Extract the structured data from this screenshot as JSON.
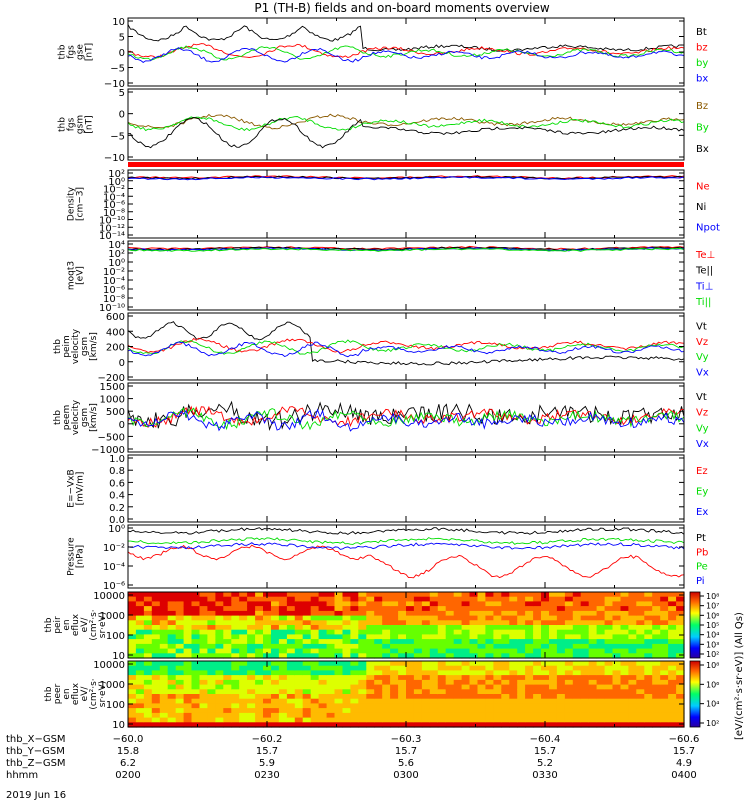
{
  "title": "P1 (TH-B) fields and on-board moments overview",
  "colors": {
    "black": "#000000",
    "red": "#ff0000",
    "green": "#00dd00",
    "blue": "#0000ff",
    "brown": "#8b5a00"
  },
  "chart_data": [
    {
      "type": "line",
      "ylabel": [
        "thb",
        "fgs",
        "gse",
        "[nT]"
      ],
      "yticks": [
        "10",
        "5",
        "0",
        "−5",
        "−10"
      ],
      "ylim": [
        -10,
        10
      ],
      "ylog": false,
      "legend": [
        {
          "name": "Bt",
          "color": "black"
        },
        {
          "name": "bz",
          "color": "red"
        },
        {
          "name": "by",
          "color": "green"
        },
        {
          "name": "bx",
          "color": "blue"
        }
      ]
    },
    {
      "type": "line",
      "ylabel": [
        "thb",
        "fgs",
        "gsm",
        "[nT]"
      ],
      "yticks": [
        "5",
        "0",
        "−5",
        "−10"
      ],
      "ylim": [
        -12,
        8
      ],
      "ylog": false,
      "legend": [
        {
          "name": "Bz",
          "color": "brown"
        },
        {
          "name": "By",
          "color": "green"
        },
        {
          "name": "Bx",
          "color": "black"
        }
      ]
    },
    {
      "type": "line",
      "ylabel": [
        "Density",
        "[cm−3]"
      ],
      "yticks": [
        "10²",
        "10⁰",
        "10⁻²",
        "10⁻⁴",
        "10⁻⁶",
        "10⁻⁸",
        "10⁻¹⁰",
        "10⁻¹²",
        "10⁻¹⁴"
      ],
      "ylim": [
        -14,
        2
      ],
      "ylog": true,
      "legend": [
        {
          "name": "Ne",
          "color": "red"
        },
        {
          "name": "Ni",
          "color": "black"
        },
        {
          "name": "Npot",
          "color": "blue"
        }
      ]
    },
    {
      "type": "line",
      "ylabel": [
        "moqt3",
        "[eV]"
      ],
      "yticks": [
        "10⁴",
        "10²",
        "10⁰",
        "10⁻²",
        "10⁻⁴",
        "10⁻⁶",
        "10⁻⁸",
        "10⁻¹⁰"
      ],
      "ylim": [
        -10,
        4
      ],
      "ylog": true,
      "legend": [
        {
          "name": "Te⊥",
          "color": "red"
        },
        {
          "name": "Te||",
          "color": "black"
        },
        {
          "name": "Ti⊥",
          "color": "blue"
        },
        {
          "name": "Ti||",
          "color": "green"
        }
      ]
    },
    {
      "type": "line",
      "ylabel": [
        "thb",
        "peim",
        "velocity",
        "gsm",
        "[km/s]"
      ],
      "yticks": [
        "600",
        "400",
        "200",
        "0",
        "−200"
      ],
      "ylim": [
        -200,
        600
      ],
      "ylog": false,
      "legend": [
        {
          "name": "Vt",
          "color": "black"
        },
        {
          "name": "Vz",
          "color": "red"
        },
        {
          "name": "Vy",
          "color": "green"
        },
        {
          "name": "Vx",
          "color": "blue"
        }
      ]
    },
    {
      "type": "line",
      "ylabel": [
        "thb",
        "peem",
        "velocity",
        "gsm",
        "[km/s]"
      ],
      "yticks": [
        "1500",
        "1000",
        "500",
        "0",
        "−500",
        "−1000"
      ],
      "ylim": [
        -1000,
        1500
      ],
      "ylog": false,
      "legend": [
        {
          "name": "Vt",
          "color": "black"
        },
        {
          "name": "Vz",
          "color": "red"
        },
        {
          "name": "Vy",
          "color": "green"
        },
        {
          "name": "Vx",
          "color": "blue"
        }
      ]
    },
    {
      "type": "line",
      "ylabel": [
        "E=−VxB",
        "[mV/m]"
      ],
      "yticks": [
        "1.0",
        "0.8",
        "0.6",
        "0.4",
        "0.2",
        "0.0"
      ],
      "ylim": [
        0,
        1
      ],
      "ylog": false,
      "legend": [
        {
          "name": "Ez",
          "color": "red"
        },
        {
          "name": "Ey",
          "color": "green"
        },
        {
          "name": "Ex",
          "color": "blue"
        }
      ]
    },
    {
      "type": "line",
      "ylabel": [
        "Pressure",
        "[nPa]"
      ],
      "yticks": [
        "10⁰",
        "10⁻²",
        "10⁻⁴",
        "10⁻⁶"
      ],
      "ylim": [
        -6,
        0
      ],
      "ylog": true,
      "legend": [
        {
          "name": "Pt",
          "color": "black"
        },
        {
          "name": "Pb",
          "color": "red"
        },
        {
          "name": "Pe",
          "color": "green"
        },
        {
          "name": "Pi",
          "color": "blue"
        }
      ]
    },
    {
      "type": "heatmap",
      "ylabel": [
        "thb",
        "peir",
        "en",
        "eflux",
        "eV/",
        "(cm²·s·",
        "sr·eV)"
      ],
      "yticks": [
        "10000",
        "1000",
        "100",
        "10"
      ],
      "ylim": [
        5,
        25000
      ],
      "ylog": true
    },
    {
      "type": "heatmap",
      "ylabel": [
        "thb",
        "peer",
        "en",
        "eflux",
        "eV/",
        "(cm²·s·",
        "sr·eV)"
      ],
      "yticks": [
        "10000",
        "1000",
        "100",
        "10"
      ],
      "ylim": [
        5,
        25000
      ],
      "ylog": true
    }
  ],
  "colorbar": {
    "ticks": [
      "10⁸",
      "10⁷",
      "10⁶",
      "10⁵",
      "10⁴",
      "10³",
      "10²"
    ],
    "ticks_lower": [
      "10⁸",
      "10⁶",
      "10⁴",
      "10²"
    ],
    "label": "[eV/(cm²·s·sr·eV)] (All Qs)"
  },
  "xaxis": {
    "rows": [
      {
        "label": "thb_X−GSM",
        "values": [
          "−60.0",
          "−60.2",
          "−60.3",
          "−60.4",
          "−60.6"
        ]
      },
      {
        "label": "thb_Y−GSM",
        "values": [
          "15.8",
          "15.7",
          "15.7",
          "15.7",
          "15.7"
        ]
      },
      {
        "label": "thb_Z−GSM",
        "values": [
          "6.2",
          "5.9",
          "5.6",
          "5.2",
          "4.9"
        ]
      },
      {
        "label": "hhmm",
        "values": [
          "0200",
          "0230",
          "0300",
          "0330",
          "0400"
        ]
      }
    ],
    "date": "2019 Jun 16"
  }
}
